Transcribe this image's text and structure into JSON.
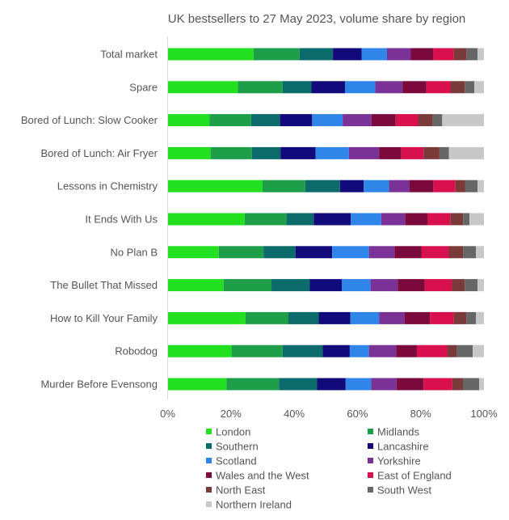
{
  "chart_data": {
    "type": "bar",
    "orientation": "horizontal",
    "stacked": true,
    "title": "UK bestsellers to 27 May 2023, volume share by region",
    "xlabel": "",
    "ylabel": "",
    "xlim": [
      0,
      100
    ],
    "x_ticks": [
      "0%",
      "20%",
      "40%",
      "60%",
      "80%",
      "100%"
    ],
    "grid": false,
    "legend_position": "bottom",
    "categories": [
      "Total market",
      "Spare",
      "Bored of Lunch: Slow Cooker",
      "Bored of Lunch: Air Fryer",
      "Lessons in Chemistry",
      "It Ends With Us",
      "No Plan B",
      "The Bullet That Missed",
      "How to Kill Your Family",
      "Robodog",
      "Murder Before Evensong"
    ],
    "series": [
      {
        "name": "London",
        "color": "#22e01f",
        "values": [
          27,
          22,
          13,
          13.5,
          30,
          24,
          16,
          17.5,
          24.5,
          20,
          18.5
        ]
      },
      {
        "name": "Midlands",
        "color": "#1f9e4a",
        "values": [
          14.5,
          14,
          13,
          13,
          13.5,
          13,
          14,
          15,
          13.5,
          16,
          16.5
        ]
      },
      {
        "name": "Southern",
        "color": "#0b6a6a",
        "values": [
          10.5,
          9,
          9,
          9,
          11,
          8.5,
          10,
          12,
          9.5,
          12.5,
          12
        ]
      },
      {
        "name": "Lancashire",
        "color": "#120a7a",
        "values": [
          9,
          10.5,
          10,
          11,
          7.5,
          11.5,
          11.5,
          10,
          10,
          8.5,
          9
        ]
      },
      {
        "name": "Scotland",
        "color": "#2f86e8",
        "values": [
          8,
          9.5,
          9.5,
          10.5,
          8,
          9.5,
          11.5,
          9,
          9,
          6,
          8
        ]
      },
      {
        "name": "Yorkshire",
        "color": "#7a3296",
        "values": [
          7.5,
          8.5,
          9,
          9.5,
          6.5,
          7.5,
          8,
          8.5,
          8,
          8.5,
          8
        ]
      },
      {
        "name": "Wales and the West",
        "color": "#7a0a3c",
        "values": [
          7,
          7.5,
          7.5,
          7,
          7.5,
          7,
          8.5,
          8.5,
          8,
          6.5,
          8.5
        ]
      },
      {
        "name": "East of England",
        "color": "#d8104e",
        "values": [
          6.5,
          7.5,
          7,
          7,
          7,
          7,
          8.5,
          8.5,
          7.5,
          9.5,
          9
        ]
      },
      {
        "name": "North East",
        "color": "#7a3a3a",
        "values": [
          4,
          4.5,
          4.5,
          5,
          3,
          4,
          4.5,
          4,
          4,
          3,
          3.5
        ]
      },
      {
        "name": "South West",
        "color": "#666666",
        "values": [
          3.5,
          3,
          3,
          3,
          4,
          2,
          4,
          4,
          3,
          5,
          5
        ]
      },
      {
        "name": "Northern Ireland",
        "color": "#c8c8c8",
        "values": [
          2,
          3,
          13,
          11,
          2,
          4.5,
          2.5,
          2,
          2.5,
          3.5,
          1.5
        ]
      }
    ]
  }
}
